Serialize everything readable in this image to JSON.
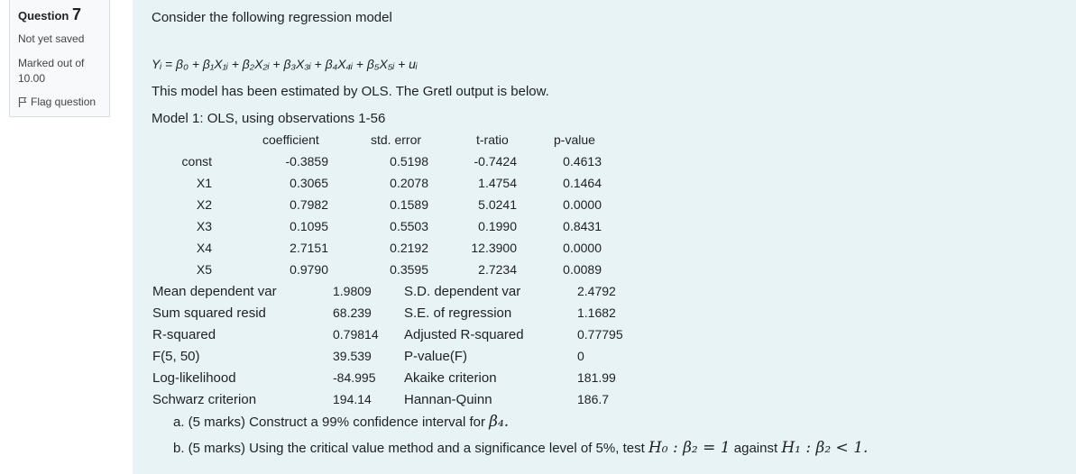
{
  "question": {
    "label": "Question",
    "number": "7",
    "status": "Not yet saved",
    "marks_line1": "Marked out of",
    "marks_line2": "10.00",
    "flag_label": "Flag question"
  },
  "intro": "Consider the following regression model",
  "equation": "Yᵢ = β₀ + β₁X₁ᵢ + β₂X₂ᵢ + β₃X₃ᵢ + β₄X₄ᵢ + β₅X₅ᵢ + uᵢ",
  "estimation_note": "This model has been estimated by OLS. The Gretl output is below.",
  "model_title": "Model 1: OLS, using observations 1-56",
  "table": {
    "headers": [
      "coefficient",
      "std. error",
      "t-ratio",
      "p-value"
    ],
    "rows": [
      {
        "name": "const",
        "coef": "-0.3859",
        "se": "0.5198",
        "t": "-0.7424",
        "p": "0.4613"
      },
      {
        "name": "X1",
        "coef": "0.3065",
        "se": "0.2078",
        "t": "1.4754",
        "p": "0.1464"
      },
      {
        "name": "X2",
        "coef": "0.7982",
        "se": "0.1589",
        "t": "5.0241",
        "p": "0.0000"
      },
      {
        "name": "X3",
        "coef": "0.1095",
        "se": "0.5503",
        "t": "0.1990",
        "p": "0.8431"
      },
      {
        "name": "X4",
        "coef": "2.7151",
        "se": "0.2192",
        "t": "12.3900",
        "p": "0.0000"
      },
      {
        "name": "X5",
        "coef": "0.9790",
        "se": "0.3595",
        "t": "2.7234",
        "p": "0.0089"
      }
    ]
  },
  "stats": [
    {
      "l1": "Mean dependent var",
      "v1": "1.9809",
      "l2": "S.D. dependent var",
      "v2": "2.4792"
    },
    {
      "l1": "Sum squared resid",
      "v1": "68.239",
      "l2": "S.E. of regression",
      "v2": "1.1682"
    },
    {
      "l1": "R-squared",
      "v1": "0.79814",
      "l2": "Adjusted R-squared",
      "v2": "0.77795"
    },
    {
      "l1": "F(5, 50)",
      "v1": "39.539",
      "l2": "P-value(F)",
      "v2": "0"
    },
    {
      "l1": "Log-likelihood",
      "v1": "-84.995",
      "l2": "Akaike criterion",
      "v2": "181.99"
    },
    {
      "l1": "Schwarz criterion",
      "v1": "194.14",
      "l2": "Hannan-Quinn",
      "v2": "186.7"
    }
  ],
  "part_a": {
    "text": "a. (5 marks) Construct a 99% confidence interval for ",
    "math": "β₄."
  },
  "part_b": {
    "text": "b. (5 marks) Using the critical value method and a significance level of 5%, test ",
    "h0": "H₀ : β₂ = 1",
    "against": " against ",
    "h1": "H₁ : β₂ < 1."
  }
}
